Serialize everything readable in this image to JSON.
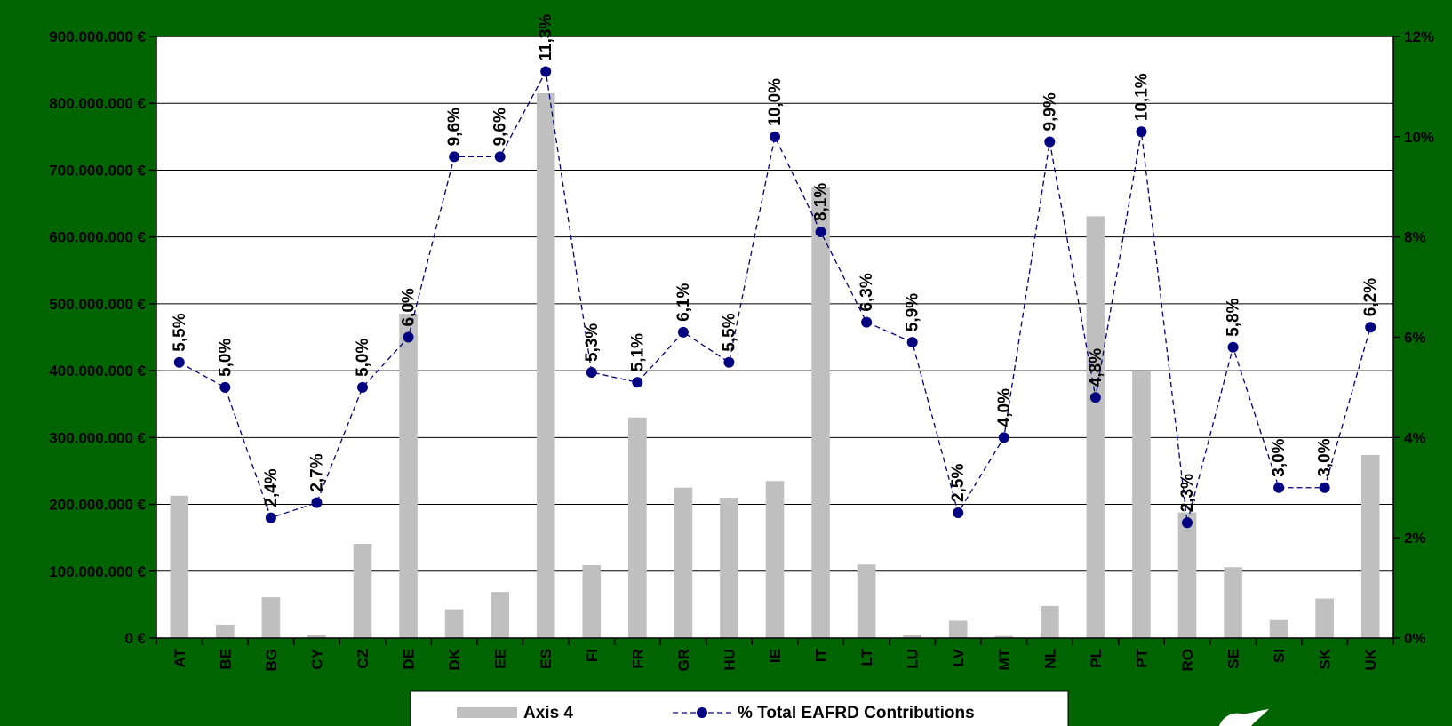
{
  "chart_data": {
    "type": "bar+line",
    "title": "",
    "categories": [
      "AT",
      "BE",
      "BG",
      "CY",
      "CZ",
      "DE",
      "DK",
      "EE",
      "ES",
      "FI",
      "FR",
      "GR",
      "HU",
      "IE",
      "IT",
      "LT",
      "LU",
      "LV",
      "MT",
      "NL",
      "PL",
      "PT",
      "RO",
      "SE",
      "SI",
      "SK",
      "UK"
    ],
    "series": [
      {
        "name": "Axis 4",
        "type": "bar",
        "axis": "left",
        "color": "#c0c0c0",
        "values": [
          213000000,
          20000000,
          61000000,
          4000000,
          141000000,
          485000000,
          43000000,
          69000000,
          815000000,
          109000000,
          330000000,
          225000000,
          210000000,
          235000000,
          674000000,
          110000000,
          4000000,
          26000000,
          3000000,
          48000000,
          631000000,
          399000000,
          188000000,
          106000000,
          27000000,
          59000000,
          274000000
        ]
      },
      {
        "name": "% Total EAFRD Contributions",
        "type": "line",
        "axis": "right",
        "color": "#000080",
        "line_style": "dashed",
        "marker": "circle",
        "values": [
          5.5,
          5.0,
          2.4,
          2.7,
          5.0,
          6.0,
          9.6,
          9.6,
          11.3,
          5.3,
          5.1,
          6.1,
          5.5,
          10.0,
          8.1,
          6.3,
          5.9,
          2.5,
          4.0,
          9.9,
          4.8,
          10.1,
          2.3,
          5.8,
          3.0,
          3.0,
          6.2
        ],
        "labels": [
          "5,5%",
          "5,0%",
          "2,4%",
          "2,7%",
          "5,0%",
          "6,0%",
          "9,6%",
          "9,6%",
          "11,3%",
          "5,3%",
          "5,1%",
          "6,1%",
          "5,5%",
          "10,0%",
          "8,1%",
          "6,3%",
          "5,9%",
          "2,5%",
          "4,0%",
          "9,9%",
          "4,8%",
          "10,1%",
          "2,3%",
          "5,8%",
          "3,0%",
          "3,0%",
          "6,2%"
        ]
      }
    ],
    "y_left": {
      "min": 0,
      "max": 900000000,
      "ticks": [
        0,
        100000000,
        200000000,
        300000000,
        400000000,
        500000000,
        600000000,
        700000000,
        800000000,
        900000000
      ],
      "tick_labels": [
        "0 €",
        "100.000.000 €",
        "200.000.000 €",
        "300.000.000 €",
        "400.000.000 €",
        "500.000.000 €",
        "600.000.000 €",
        "700.000.000 €",
        "800.000.000 €",
        "900.000.000 €"
      ]
    },
    "y_right": {
      "min": 0,
      "max": 12,
      "ticks": [
        0,
        2,
        4,
        6,
        8,
        10,
        12
      ],
      "tick_labels": [
        "0%",
        "2%",
        "4%",
        "6%",
        "8%",
        "10%",
        "12%"
      ]
    },
    "grid": true,
    "legend": {
      "position": "bottom",
      "entries": [
        "Axis 4",
        "% Total EAFRD Contributions"
      ]
    }
  },
  "colors": {
    "background": "#006400",
    "plot_area": "#ffffff",
    "bar": "#c0c0c0",
    "line": "#000080",
    "grid": "#000000"
  }
}
